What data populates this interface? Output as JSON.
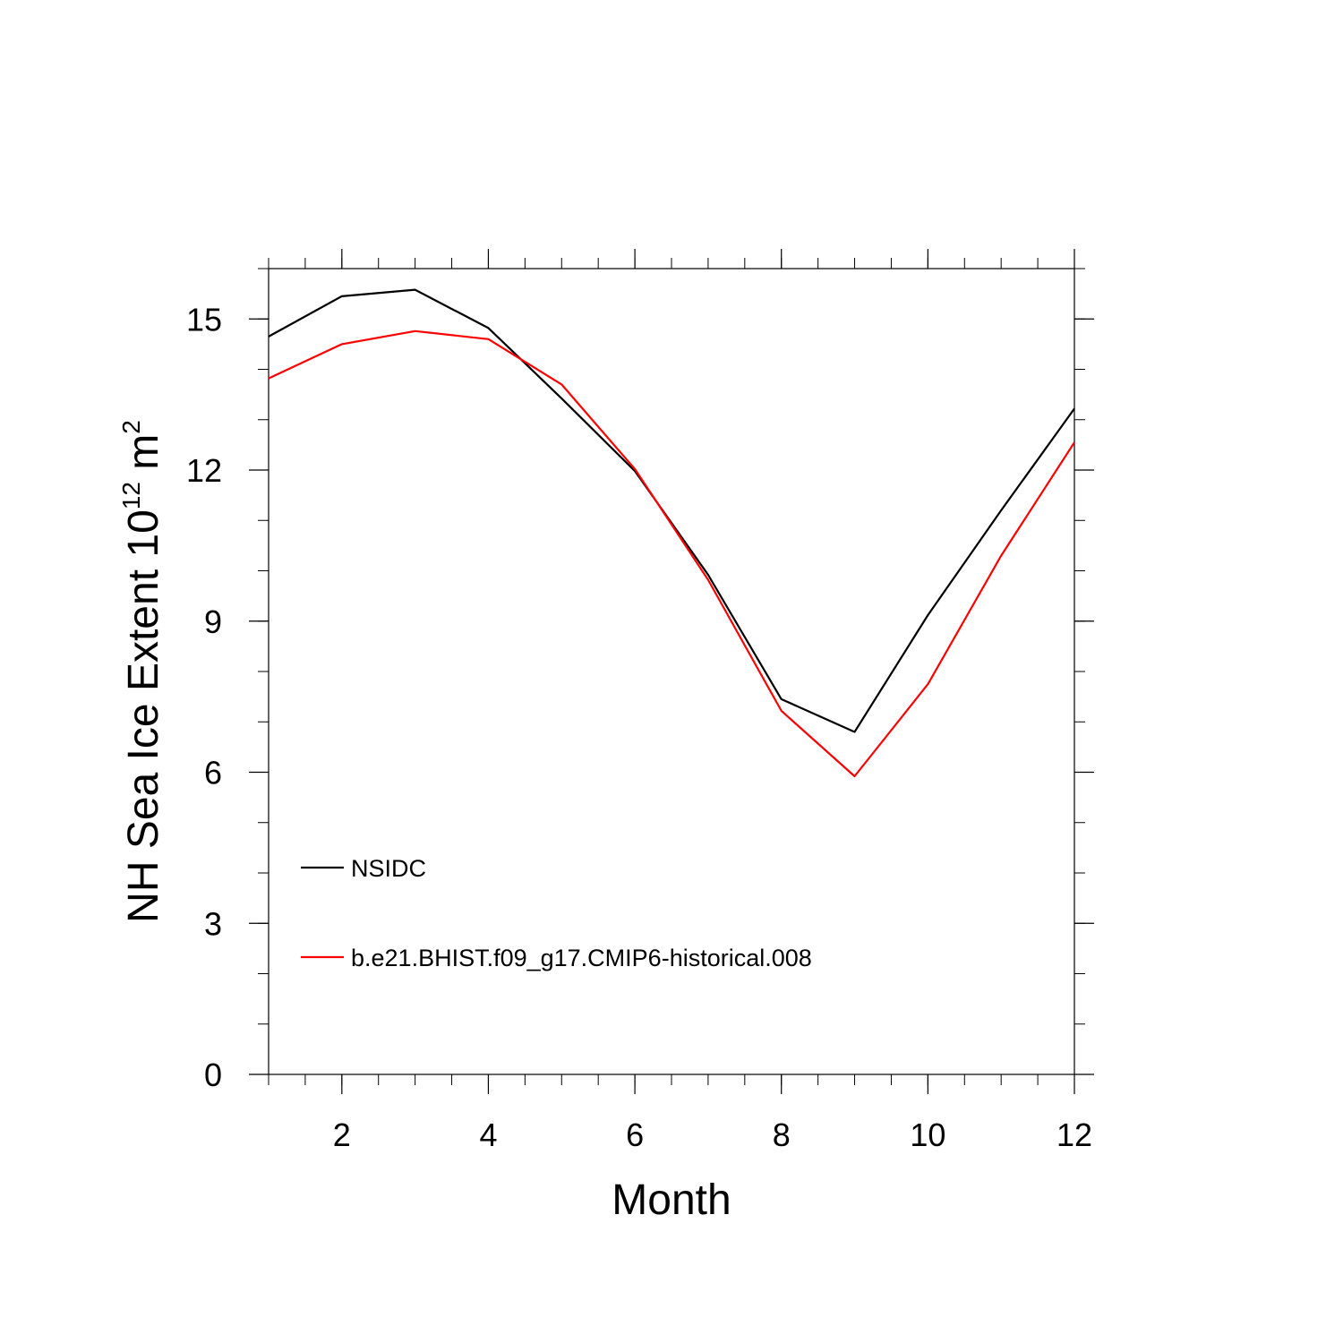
{
  "chart_data": {
    "type": "line",
    "xlabel": "Month",
    "ylabel": {
      "text": "NH Sea Ice Extent 10",
      "exponent": "12",
      "unit": " m",
      "unit_exponent": "2"
    },
    "xlim": [
      1,
      12
    ],
    "ylim": [
      0,
      16
    ],
    "x_ticks": [
      2,
      4,
      6,
      8,
      10,
      12
    ],
    "y_ticks": [
      0,
      3,
      6,
      9,
      12,
      15
    ],
    "grid": false,
    "legend_position": "lower-left",
    "x": [
      1,
      2,
      3,
      4,
      5,
      6,
      7,
      8,
      9,
      10,
      11,
      12
    ],
    "series": [
      {
        "name": "NSIDC",
        "color": "#000000",
        "values": [
          14.65,
          15.45,
          15.58,
          14.82,
          13.42,
          11.98,
          9.92,
          7.45,
          6.8,
          9.12,
          11.2,
          13.22
        ]
      },
      {
        "name": "b.e21.BHIST.f09_g17.CMIP6-historical.008",
        "color": "#ff0000",
        "values": [
          13.82,
          14.5,
          14.76,
          14.6,
          13.7,
          12.02,
          9.82,
          7.22,
          5.92,
          7.75,
          10.3,
          12.55
        ]
      }
    ]
  }
}
